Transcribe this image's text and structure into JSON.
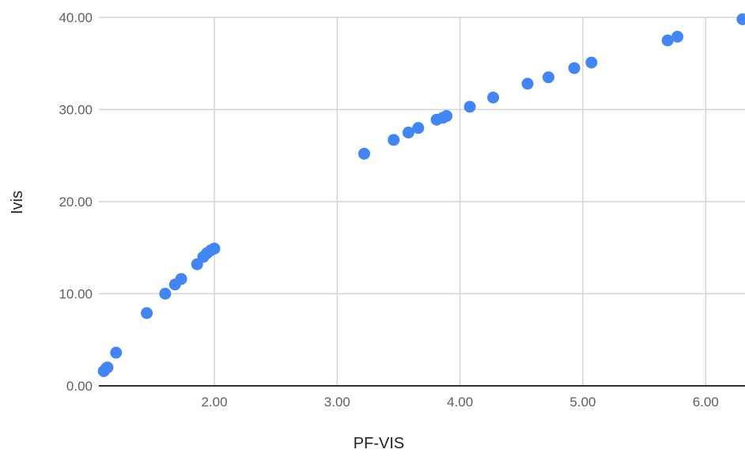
{
  "chart_data": {
    "type": "scatter",
    "xlabel": "PF-VIS",
    "ylabel": "Ivis",
    "xlim": [
      1.06,
      6.32
    ],
    "ylim": [
      0,
      40
    ],
    "x_ticks": [
      2,
      3,
      4,
      5,
      6
    ],
    "x_tick_labels": [
      "2.00",
      "3.00",
      "4.00",
      "5.00",
      "6.00"
    ],
    "y_ticks": [
      0,
      10,
      20,
      30,
      40
    ],
    "y_tick_labels": [
      "0.00",
      "10.00",
      "20.00",
      "30.00",
      "40.00"
    ],
    "grid": true,
    "legend": "none",
    "point_color": "#4285f4",
    "series": [
      {
        "x": [
          1.1,
          1.12,
          1.13,
          1.2,
          1.45,
          1.6,
          1.68,
          1.73,
          1.86,
          1.91,
          1.94,
          1.97,
          2.0,
          3.22,
          3.46,
          3.58,
          3.66,
          3.81,
          3.86,
          3.89,
          4.08,
          4.27,
          4.55,
          4.72,
          4.93,
          5.07,
          5.69,
          5.77,
          6.3
        ],
        "y": [
          1.6,
          1.9,
          2.0,
          3.6,
          7.9,
          10.0,
          11.0,
          11.6,
          13.2,
          14.0,
          14.4,
          14.7,
          14.9,
          25.2,
          26.7,
          27.5,
          28.0,
          28.9,
          29.1,
          29.3,
          30.3,
          31.3,
          32.8,
          33.5,
          34.5,
          35.1,
          37.5,
          37.9,
          39.8
        ]
      }
    ]
  }
}
